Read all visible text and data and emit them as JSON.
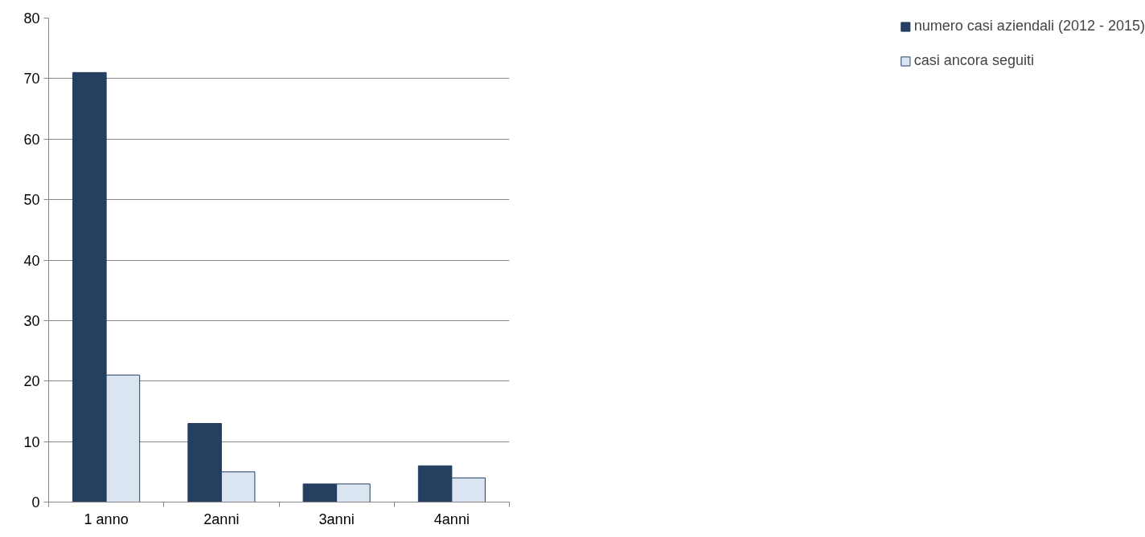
{
  "chart_data": {
    "type": "bar",
    "categories": [
      "1 anno",
      "2anni",
      "3anni",
      "4anni"
    ],
    "series": [
      {
        "name": "numero casi aziendali (2012 - 2015)",
        "color": "#243f60",
        "values": [
          71,
          13,
          3,
          6
        ]
      },
      {
        "name": "casi ancora seguiti",
        "color": "#dbe5f1",
        "values": [
          21,
          5,
          3,
          4
        ]
      }
    ],
    "ylim": [
      0,
      80
    ],
    "yticks": [
      0,
      10,
      20,
      30,
      40,
      50,
      60,
      70,
      80
    ],
    "grid": "y",
    "legend": "right"
  }
}
